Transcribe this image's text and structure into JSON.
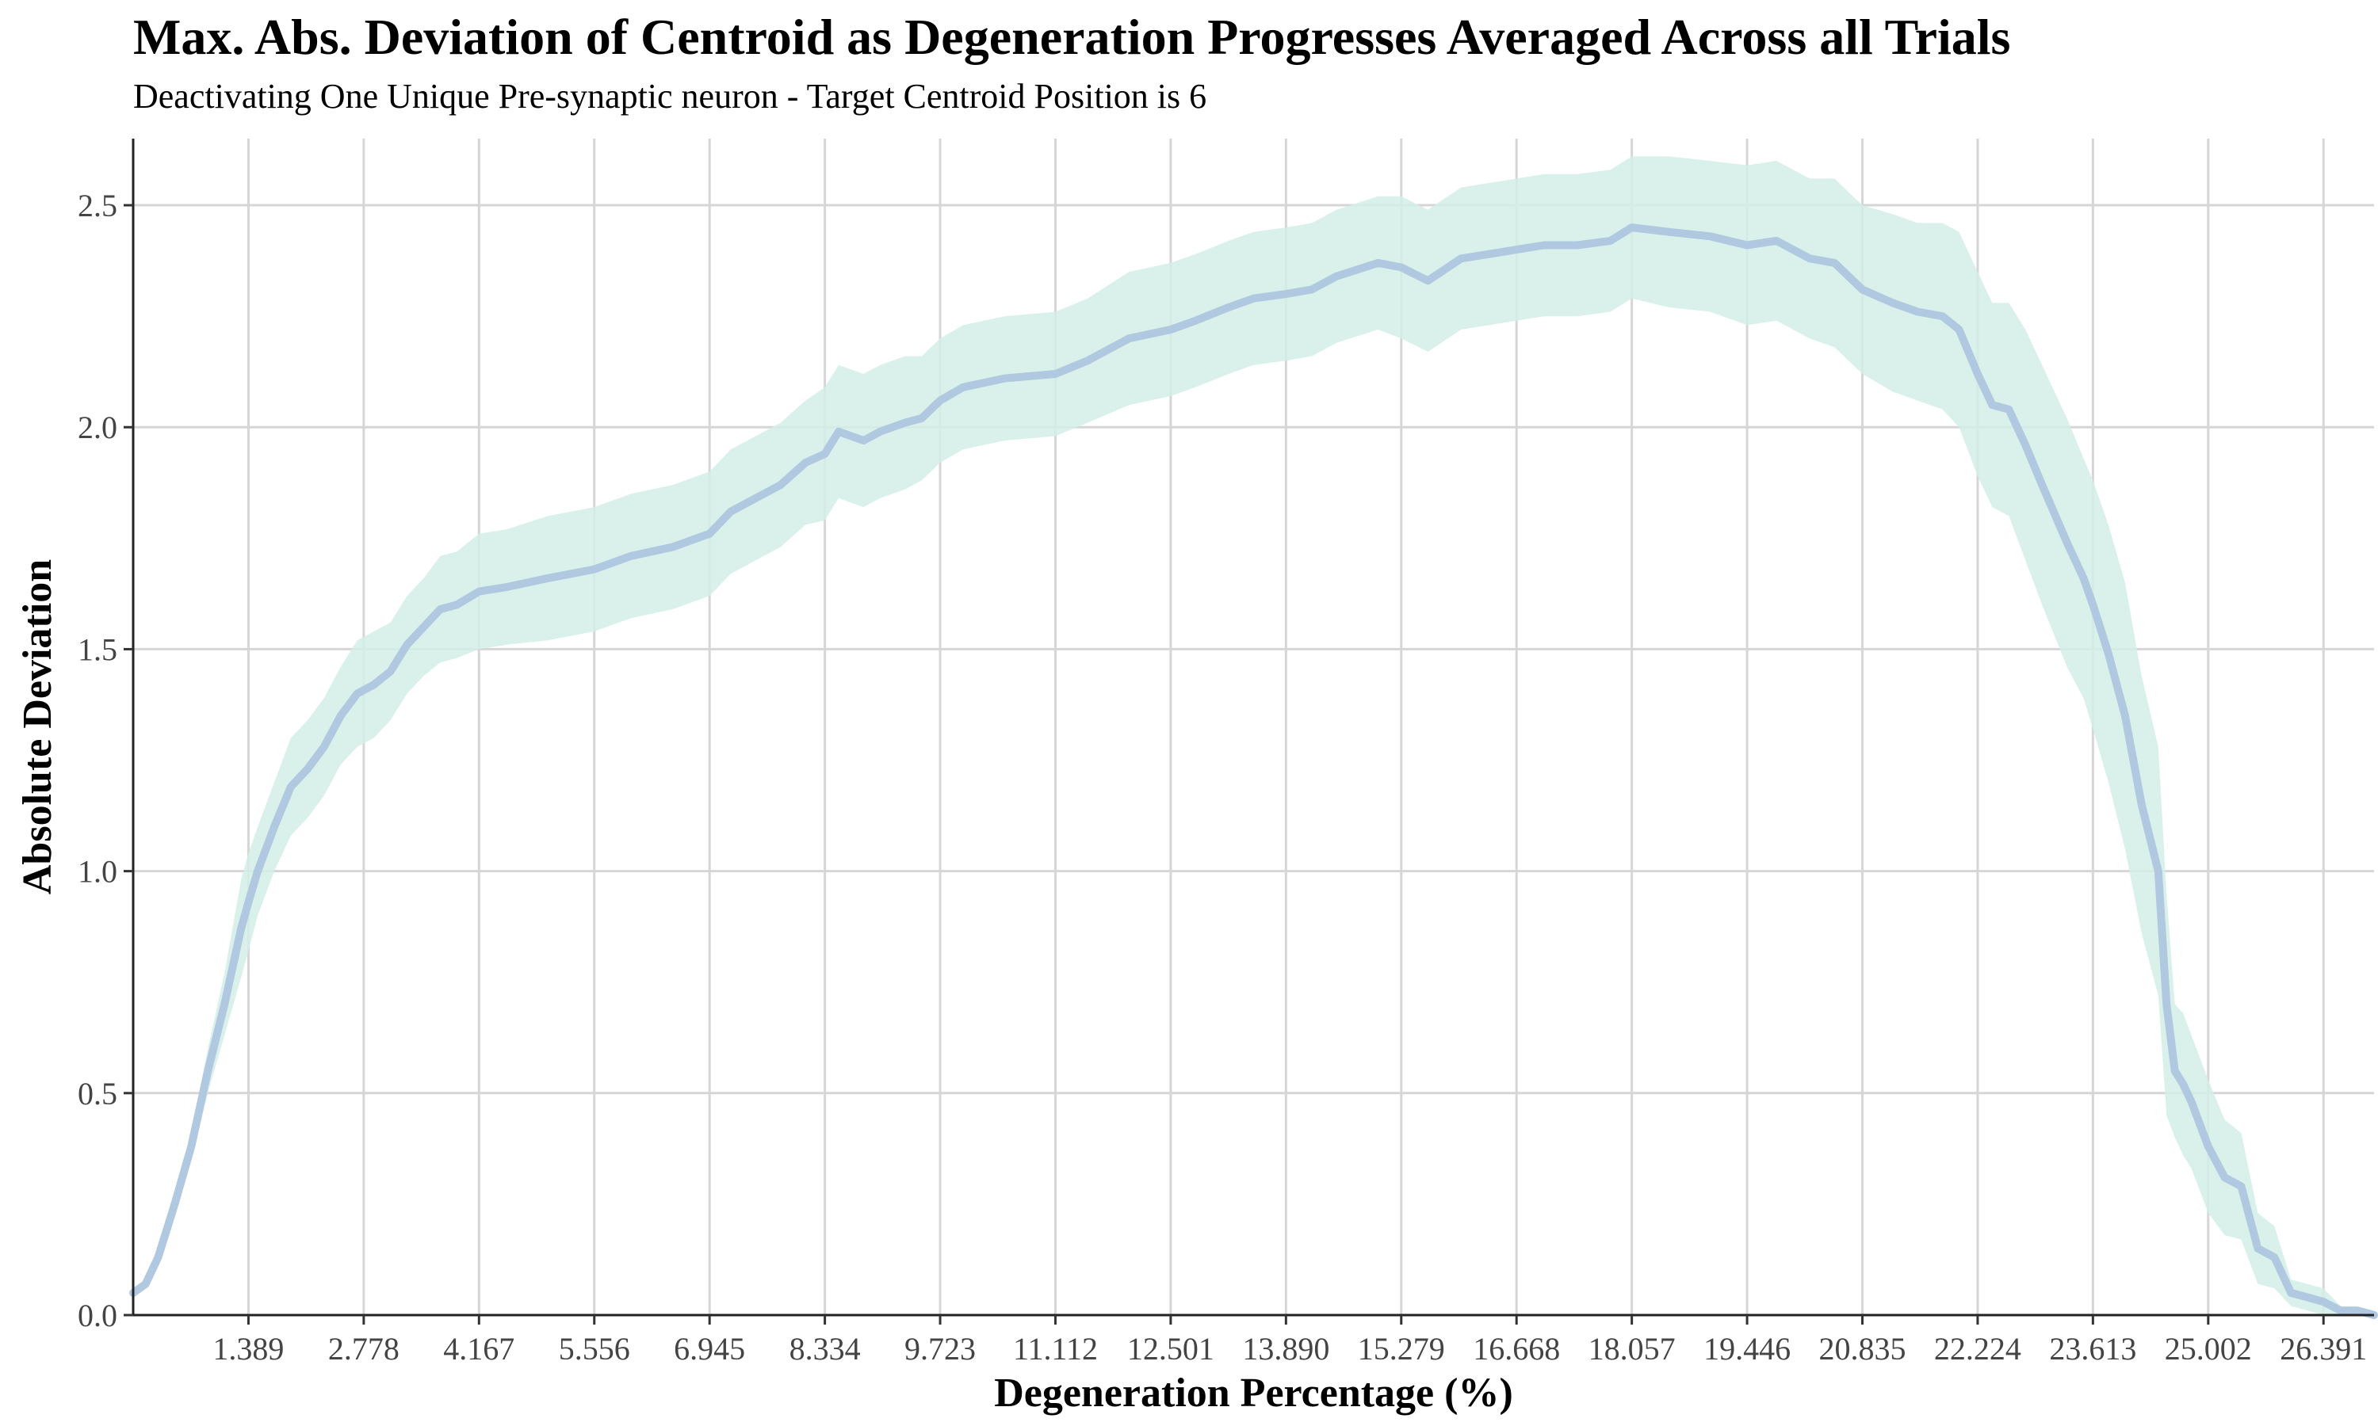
{
  "chart_data": {
    "type": "line",
    "title": "Max. Abs. Deviation of Centroid as Degeneration Progresses Averaged Across all Trials",
    "subtitle": "Deactivating One Unique Pre-synaptic neuron - Target Centroid Position is 6",
    "xlabel": "Degeneration Percentage (%)",
    "ylabel": "Absolute Deviation",
    "xlim": [
      0.0,
      27.0
    ],
    "ylim": [
      0.0,
      2.65
    ],
    "x_ticks": [
      1.389,
      2.778,
      4.167,
      5.556,
      6.945,
      8.334,
      9.723,
      11.112,
      12.501,
      13.89,
      15.279,
      16.668,
      18.057,
      19.446,
      20.835,
      22.224,
      23.613,
      25.002,
      26.391
    ],
    "x_tick_labels": [
      "1.389",
      "2.778",
      "4.167",
      "5.556",
      "6.945",
      "8.334",
      "9.723",
      "11.112",
      "12.501",
      "13.890",
      "15.279",
      "16.668",
      "18.057",
      "19.446",
      "20.835",
      "22.224",
      "23.613",
      "25.002",
      "26.391"
    ],
    "y_ticks": [
      0.0,
      0.5,
      1.0,
      1.5,
      2.0,
      2.5
    ],
    "y_tick_labels": [
      "0.0",
      "0.5",
      "1.0",
      "1.5",
      "2.0",
      "2.5"
    ],
    "grid": true,
    "line_color": "#b0c8e0",
    "band_color": "#d4efe8",
    "series": [
      {
        "x": [
          0.0,
          0.15,
          0.3,
          0.5,
          0.7,
          0.9,
          1.1,
          1.3,
          1.389,
          1.5,
          1.7,
          1.9,
          2.1,
          2.3,
          2.5,
          2.7,
          2.9,
          3.1,
          3.3,
          3.5,
          3.7,
          3.9,
          4.167,
          4.5,
          5.0,
          5.556,
          6.0,
          6.5,
          6.945,
          7.2,
          7.5,
          7.8,
          8.1,
          8.334,
          8.5,
          8.8,
          9.0,
          9.3,
          9.5,
          9.723,
          10.0,
          10.5,
          11.112,
          11.5,
          12.0,
          12.501,
          12.8,
          13.2,
          13.5,
          13.89,
          14.2,
          14.5,
          15.0,
          15.279,
          15.6,
          16.0,
          16.668,
          17.0,
          17.4,
          17.8,
          18.057,
          18.5,
          19.0,
          19.446,
          19.8,
          20.2,
          20.5,
          20.835,
          21.2,
          21.5,
          21.8,
          22.0,
          22.224,
          22.4,
          22.6,
          22.8,
          23.0,
          23.3,
          23.5,
          23.613,
          23.8,
          24.0,
          24.2,
          24.4,
          24.5,
          24.6,
          24.7,
          24.8,
          25.002,
          25.2,
          25.4,
          25.6,
          25.8,
          26.0,
          26.2,
          26.391,
          26.6,
          26.8,
          27.0
        ],
        "y": [
          0.05,
          0.07,
          0.13,
          0.25,
          0.38,
          0.55,
          0.7,
          0.87,
          0.93,
          1.0,
          1.1,
          1.19,
          1.23,
          1.28,
          1.35,
          1.4,
          1.42,
          1.45,
          1.51,
          1.55,
          1.59,
          1.6,
          1.63,
          1.64,
          1.66,
          1.68,
          1.71,
          1.73,
          1.76,
          1.81,
          1.84,
          1.87,
          1.92,
          1.94,
          1.99,
          1.97,
          1.99,
          2.01,
          2.02,
          2.06,
          2.09,
          2.11,
          2.12,
          2.15,
          2.2,
          2.22,
          2.24,
          2.27,
          2.29,
          2.3,
          2.31,
          2.34,
          2.37,
          2.36,
          2.33,
          2.38,
          2.4,
          2.41,
          2.41,
          2.42,
          2.45,
          2.44,
          2.43,
          2.41,
          2.42,
          2.38,
          2.37,
          2.31,
          2.28,
          2.26,
          2.25,
          2.22,
          2.12,
          2.05,
          2.04,
          1.96,
          1.87,
          1.74,
          1.66,
          1.6,
          1.49,
          1.35,
          1.15,
          1.0,
          0.7,
          0.55,
          0.52,
          0.48,
          0.38,
          0.31,
          0.29,
          0.15,
          0.13,
          0.05,
          0.04,
          0.03,
          0.01,
          0.01,
          0.0
        ],
        "y_lower": [
          0.04,
          0.06,
          0.12,
          0.23,
          0.35,
          0.5,
          0.63,
          0.76,
          0.82,
          0.9,
          1.0,
          1.08,
          1.12,
          1.17,
          1.24,
          1.28,
          1.3,
          1.34,
          1.4,
          1.44,
          1.47,
          1.48,
          1.5,
          1.51,
          1.52,
          1.54,
          1.57,
          1.59,
          1.62,
          1.67,
          1.7,
          1.73,
          1.78,
          1.79,
          1.84,
          1.82,
          1.84,
          1.86,
          1.88,
          1.92,
          1.95,
          1.97,
          1.98,
          2.01,
          2.05,
          2.07,
          2.09,
          2.12,
          2.14,
          2.15,
          2.16,
          2.19,
          2.22,
          2.2,
          2.17,
          2.22,
          2.24,
          2.25,
          2.25,
          2.26,
          2.29,
          2.27,
          2.26,
          2.23,
          2.24,
          2.2,
          2.18,
          2.12,
          2.08,
          2.06,
          2.04,
          2.0,
          1.89,
          1.82,
          1.8,
          1.7,
          1.6,
          1.46,
          1.39,
          1.32,
          1.2,
          1.05,
          0.86,
          0.72,
          0.45,
          0.4,
          0.36,
          0.33,
          0.23,
          0.18,
          0.17,
          0.07,
          0.06,
          0.02,
          0.01,
          0.0,
          0.0,
          0.0,
          0.0
        ],
        "y_upper": [
          0.06,
          0.08,
          0.14,
          0.27,
          0.41,
          0.6,
          0.77,
          0.98,
          1.04,
          1.1,
          1.2,
          1.3,
          1.34,
          1.39,
          1.46,
          1.52,
          1.54,
          1.56,
          1.62,
          1.66,
          1.71,
          1.72,
          1.76,
          1.77,
          1.8,
          1.82,
          1.85,
          1.87,
          1.9,
          1.95,
          1.98,
          2.01,
          2.06,
          2.09,
          2.14,
          2.12,
          2.14,
          2.16,
          2.16,
          2.2,
          2.23,
          2.25,
          2.26,
          2.29,
          2.35,
          2.37,
          2.39,
          2.42,
          2.44,
          2.45,
          2.46,
          2.49,
          2.52,
          2.52,
          2.49,
          2.54,
          2.56,
          2.57,
          2.57,
          2.58,
          2.61,
          2.61,
          2.6,
          2.59,
          2.6,
          2.56,
          2.56,
          2.5,
          2.48,
          2.46,
          2.46,
          2.44,
          2.35,
          2.28,
          2.28,
          2.22,
          2.14,
          2.02,
          1.93,
          1.88,
          1.78,
          1.65,
          1.44,
          1.28,
          0.95,
          0.7,
          0.68,
          0.63,
          0.53,
          0.44,
          0.41,
          0.23,
          0.2,
          0.08,
          0.07,
          0.06,
          0.02,
          0.02,
          0.01
        ]
      }
    ]
  }
}
